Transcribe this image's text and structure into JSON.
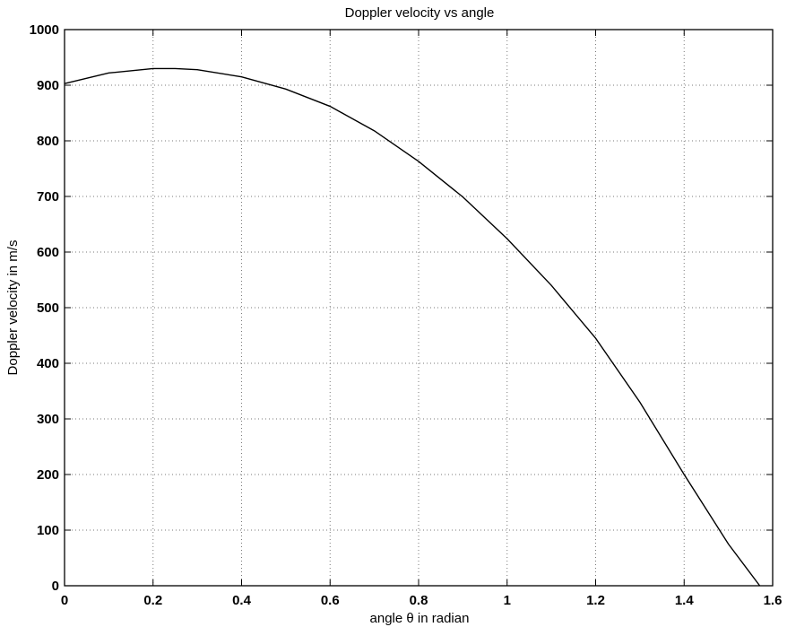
{
  "chart_data": {
    "type": "line",
    "title": "Doppler velocity vs angle",
    "xlabel": "angle θ in radian",
    "ylabel": "Doppler velocity in m/s",
    "xlim": [
      0,
      1.6
    ],
    "ylim": [
      0,
      1000
    ],
    "x_ticks": [
      0,
      0.2,
      0.4,
      0.6,
      0.8,
      1.0,
      1.2,
      1.4,
      1.6
    ],
    "x_tick_labels": [
      "0",
      "0.2",
      "0.4",
      "0.6",
      "0.8",
      "1",
      "1.2",
      "1.4",
      "1.6"
    ],
    "y_ticks": [
      0,
      100,
      200,
      300,
      400,
      500,
      600,
      700,
      800,
      900,
      1000
    ],
    "y_tick_labels": [
      "0",
      "100",
      "200",
      "300",
      "400",
      "500",
      "600",
      "700",
      "800",
      "900",
      "1000"
    ],
    "grid": true,
    "series": [
      {
        "x": [
          0,
          0.1,
          0.2,
          0.25,
          0.3,
          0.4,
          0.5,
          0.6,
          0.7,
          0.8,
          0.9,
          1.0,
          1.1,
          1.2,
          1.3,
          1.4,
          1.5,
          1.5708
        ],
        "y": [
          903,
          922,
          930,
          930,
          928,
          915,
          893,
          862,
          818,
          763,
          699,
          624,
          540,
          445,
          330,
          200,
          75,
          0
        ]
      }
    ]
  }
}
